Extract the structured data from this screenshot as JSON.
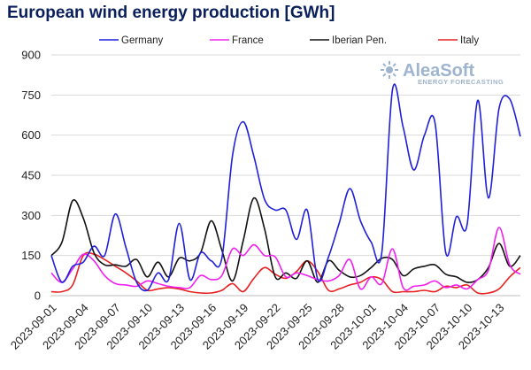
{
  "chart_data": {
    "type": "line",
    "title": "European wind energy production [GWh]",
    "ylim": [
      0,
      900
    ],
    "yticks": [
      0,
      150,
      300,
      450,
      600,
      750,
      900
    ],
    "grid": true,
    "legend_position": "top",
    "watermark": {
      "brand": "AleaSoft",
      "tagline": "ENERGY FORECASTING",
      "icon": "sun-logo-icon"
    },
    "x": [
      "2023-09-01",
      "2023-09-02",
      "2023-09-03",
      "2023-09-04",
      "2023-09-05",
      "2023-09-06",
      "2023-09-07",
      "2023-09-08",
      "2023-09-09",
      "2023-09-10",
      "2023-09-11",
      "2023-09-12",
      "2023-09-13",
      "2023-09-14",
      "2023-09-15",
      "2023-09-16",
      "2023-09-17",
      "2023-09-18",
      "2023-09-19",
      "2023-09-20",
      "2023-09-21",
      "2023-09-22",
      "2023-09-23",
      "2023-09-24",
      "2023-09-25",
      "2023-09-26",
      "2023-09-27",
      "2023-09-28",
      "2023-09-29",
      "2023-09-30",
      "2023-10-01",
      "2023-10-02",
      "2023-10-03",
      "2023-10-04",
      "2023-10-05",
      "2023-10-06",
      "2023-10-07",
      "2023-10-08",
      "2023-10-09",
      "2023-10-10",
      "2023-10-11",
      "2023-10-12",
      "2023-10-13",
      "2023-10-14",
      "2023-10-15"
    ],
    "xtick_labels": [
      "2023-09-01",
      "2023-09-04",
      "2023-09-07",
      "2023-09-10",
      "2023-09-13",
      "2023-09-16",
      "2023-09-19",
      "2023-09-22",
      "2023-09-25",
      "2023-09-28",
      "2023-10-01",
      "2023-10-04",
      "2023-10-07",
      "2023-10-10",
      "2023-10-13"
    ],
    "series": [
      {
        "name": "Germany",
        "color": "#1f1fdc",
        "values": [
          150,
          50,
          110,
          125,
          185,
          150,
          305,
          180,
          50,
          20,
          85,
          60,
          270,
          60,
          160,
          130,
          140,
          525,
          650,
          520,
          360,
          320,
          320,
          210,
          320,
          60,
          145,
          270,
          400,
          280,
          200,
          160,
          770,
          630,
          470,
          600,
          645,
          160,
          295,
          265,
          730,
          365,
          700,
          735,
          595
        ]
      },
      {
        "name": "France",
        "color": "#f020f0",
        "values": [
          85,
          50,
          100,
          155,
          130,
          75,
          45,
          40,
          35,
          55,
          45,
          35,
          30,
          30,
          75,
          60,
          75,
          175,
          150,
          190,
          150,
          145,
          70,
          85,
          75,
          60,
          55,
          75,
          135,
          25,
          70,
          45,
          175,
          30,
          35,
          40,
          55,
          30,
          40,
          25,
          60,
          95,
          255,
          115,
          80
        ]
      },
      {
        "name": "Iberian Pen.",
        "color": "#111111",
        "values": [
          150,
          200,
          355,
          290,
          160,
          115,
          115,
          110,
          135,
          70,
          125,
          70,
          140,
          130,
          160,
          280,
          170,
          55,
          205,
          365,
          250,
          70,
          85,
          65,
          130,
          50,
          130,
          95,
          70,
          75,
          105,
          140,
          135,
          75,
          100,
          110,
          115,
          80,
          70,
          50,
          60,
          105,
          195,
          110,
          150
        ]
      },
      {
        "name": "Italy",
        "color": "#e82020",
        "values": [
          15,
          15,
          40,
          150,
          155,
          135,
          110,
          85,
          55,
          20,
          25,
          30,
          25,
          15,
          10,
          10,
          20,
          45,
          15,
          65,
          105,
          80,
          65,
          90,
          130,
          90,
          20,
          25,
          40,
          50,
          70,
          60,
          15,
          15,
          15,
          20,
          15,
          35,
          30,
          40,
          10,
          10,
          25,
          70,
          105
        ]
      }
    ]
  }
}
